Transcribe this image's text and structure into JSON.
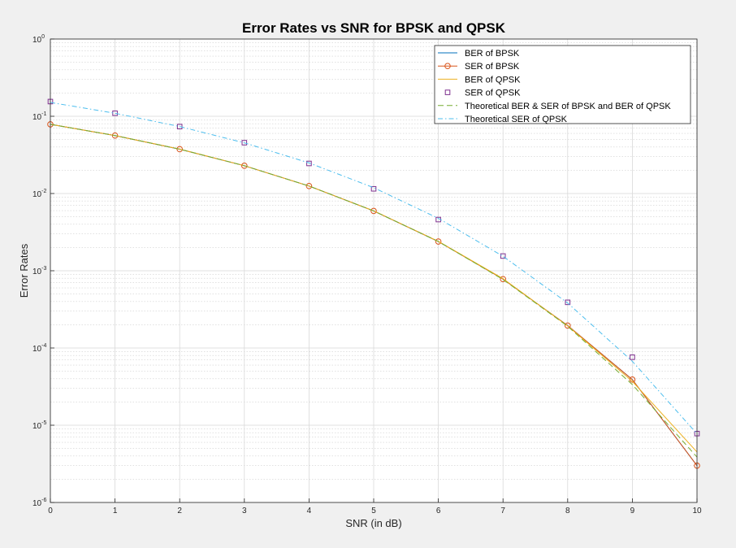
{
  "chart_data": {
    "type": "line",
    "title": "Error Rates vs SNR for BPSK and QPSK",
    "xlabel": "SNR (in dB)",
    "ylabel": "Error Rates",
    "xlim": [
      0,
      10
    ],
    "ylim": [
      1e-06,
      1
    ],
    "yscale": "log",
    "grid": true,
    "minor_grid": true,
    "legend_position": "top-right",
    "x": [
      0,
      1,
      2,
      3,
      4,
      5,
      6,
      7,
      8,
      9,
      10
    ],
    "xticks": [
      "0",
      "1",
      "2",
      "3",
      "4",
      "5",
      "6",
      "7",
      "8",
      "9",
      "10"
    ],
    "yticks": [
      {
        "value": 1,
        "base": "10",
        "exp": "0"
      },
      {
        "value": 0.1,
        "base": "10",
        "exp": "-1"
      },
      {
        "value": 0.01,
        "base": "10",
        "exp": "-2"
      },
      {
        "value": 0.001,
        "base": "10",
        "exp": "-3"
      },
      {
        "value": 0.0001,
        "base": "10",
        "exp": "-4"
      },
      {
        "value": 1e-05,
        "base": "10",
        "exp": "-5"
      },
      {
        "value": 1e-06,
        "base": "10",
        "exp": "-6"
      }
    ],
    "series": [
      {
        "name": "BER of BPSK",
        "style": "solid",
        "marker": "none",
        "color": "#0072bd",
        "values": [
          0.0786,
          0.0563,
          0.0375,
          0.0229,
          0.0125,
          0.00595,
          0.00239,
          0.00078,
          0.000195,
          3.9e-05,
          3e-06
        ]
      },
      {
        "name": "SER of BPSK",
        "style": "solid",
        "marker": "circle",
        "color": "#d95319",
        "values": [
          0.0786,
          0.0563,
          0.0375,
          0.0229,
          0.0125,
          0.00595,
          0.00239,
          0.00078,
          0.000195,
          3.9e-05,
          3e-06
        ]
      },
      {
        "name": "BER of QPSK",
        "style": "solid",
        "marker": "none",
        "color": "#edb120",
        "values": [
          0.0787,
          0.0563,
          0.0376,
          0.0229,
          0.0125,
          0.00596,
          0.0024,
          0.00079,
          0.000193,
          3.7e-05,
          4.5e-06
        ]
      },
      {
        "name": "SER of QPSK",
        "style": "none",
        "marker": "square",
        "color": "#7e2f8e",
        "values": [
          0.155,
          0.1095,
          0.0735,
          0.0455,
          0.0245,
          0.0115,
          0.0046,
          0.00155,
          0.00039,
          7.6e-05,
          7.8e-06
        ]
      },
      {
        "name": "Theoretical BER & SER of BPSK and BER of QPSK",
        "style": "dashed",
        "marker": "none",
        "color": "#77ac30",
        "values": [
          0.0786,
          0.0563,
          0.0375,
          0.0229,
          0.0125,
          0.00595,
          0.00239,
          0.00077,
          0.000191,
          3.36e-05,
          3.87e-06
        ]
      },
      {
        "name": "Theoretical SER of QPSK",
        "style": "dashdot",
        "marker": "none",
        "color": "#4dbeee",
        "values": [
          0.1511,
          0.1094,
          0.0736,
          0.0453,
          0.0249,
          0.0119,
          0.00477,
          0.00154,
          0.000382,
          6.72e-05,
          7.74e-06
        ]
      }
    ]
  }
}
